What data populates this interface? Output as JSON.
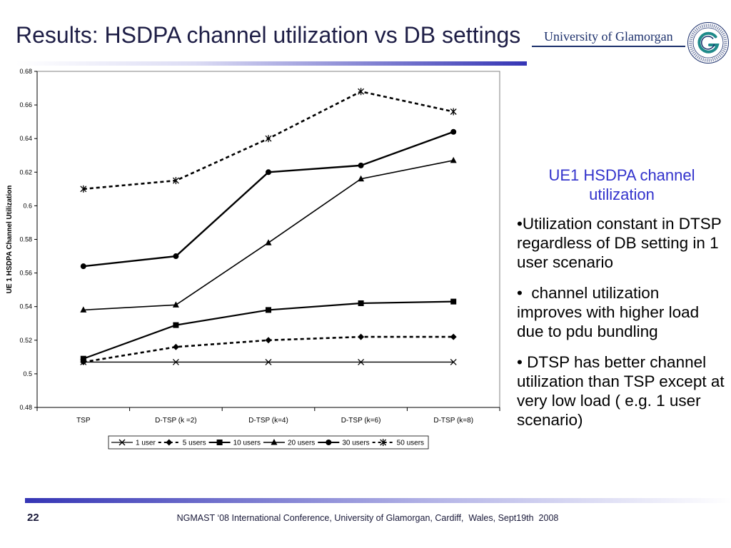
{
  "slide": {
    "title": "Results: HSDPA channel utilization vs DB settings",
    "logo_text": "University of Glamorgan",
    "page_number": "22",
    "footer": "NGMAST ‘08 International Conference, University of Glamorgan, Cardiff,  Wales, Sept19th  2008"
  },
  "notes": {
    "heading": "UE1 HSDPA channel utilization",
    "bullets": [
      "•Utilization constant in DTSP regardless of DB setting in 1 user scenario",
      "•  channel utilization improves with higher load due to pdu bundling",
      "• DTSP has better channel utilization than TSP except at very low load ( e.g. 1 user scenario)"
    ]
  },
  "icons": {
    "logo": "university-emblem-icon"
  },
  "colors": {
    "title": "#1e1e46",
    "accent": "#3333cc",
    "logo": "#1b2f6b",
    "emblem_teal": "#1f8a8a",
    "rule": "#3535b5",
    "footer": "#1a1a3a",
    "series": "#000000"
  },
  "chart_data": {
    "type": "line",
    "categories": [
      "TSP",
      "D-TSP (k =2)",
      "D-TSP (k=4)",
      "D-TSP (k=6)",
      "D-TSP (k=8)"
    ],
    "ylabel": "UE 1 HSDPA Channel Utilization",
    "ylim": [
      0.48,
      0.68
    ],
    "yticks": [
      "0.48",
      "0.5",
      "0.52",
      "0.54",
      "0.56",
      "0.58",
      "0.6",
      "0.62",
      "0.64",
      "0.66",
      "0.68"
    ],
    "grid": false,
    "legend": "bottom",
    "series": [
      {
        "name": "1 user",
        "marker": "x",
        "line": "solid",
        "values": [
          0.507,
          0.507,
          0.507,
          0.507,
          0.507
        ]
      },
      {
        "name": "5 users",
        "marker": "diamond",
        "line": "dashed",
        "values": [
          0.507,
          0.516,
          0.52,
          0.522,
          0.522
        ]
      },
      {
        "name": "10 users",
        "marker": "square",
        "line": "solid",
        "values": [
          0.509,
          0.529,
          0.538,
          0.542,
          0.543
        ]
      },
      {
        "name": "20 users",
        "marker": "triangle",
        "line": "solid",
        "values": [
          0.538,
          0.541,
          0.578,
          0.616,
          0.627
        ]
      },
      {
        "name": "30 users",
        "marker": "circle",
        "line": "solid",
        "values": [
          0.564,
          0.57,
          0.62,
          0.624,
          0.644
        ]
      },
      {
        "name": "50 users",
        "marker": "asterisk",
        "line": "dashed",
        "values": [
          0.61,
          0.615,
          0.64,
          0.668,
          0.656
        ]
      }
    ]
  }
}
